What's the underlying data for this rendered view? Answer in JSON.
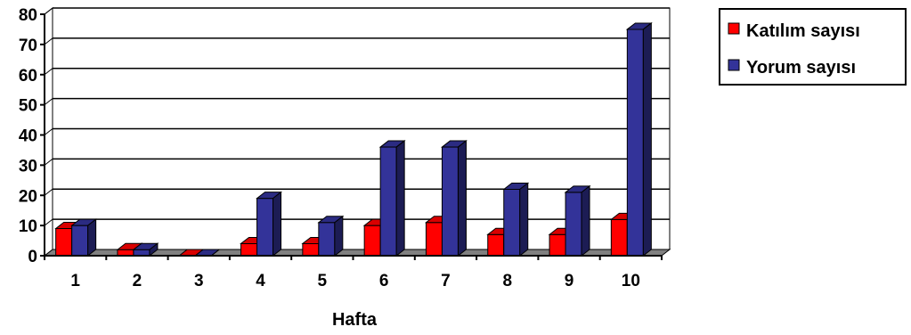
{
  "chart_data": {
    "type": "bar",
    "xlabel": "Hafta",
    "ylabel": "",
    "ylim": [
      0,
      80
    ],
    "yticks": [
      0,
      10,
      20,
      30,
      40,
      50,
      60,
      70,
      80
    ],
    "categories": [
      "1",
      "2",
      "3",
      "4",
      "5",
      "6",
      "7",
      "8",
      "9",
      "10"
    ],
    "grid": true,
    "legend_position": "top-right",
    "series": [
      {
        "name": "Katılım sayısı",
        "color": "#ff0000",
        "values": [
          9,
          2,
          0,
          4,
          4,
          10,
          11,
          7,
          7,
          12
        ]
      },
      {
        "name": "Yorum sayısı",
        "color": "#333399",
        "values": [
          10,
          2,
          0,
          19,
          11,
          36,
          36,
          22,
          21,
          75
        ]
      }
    ]
  }
}
